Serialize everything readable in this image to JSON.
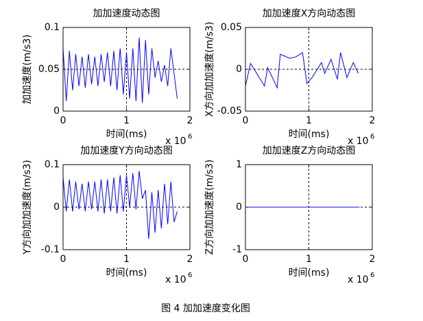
{
  "chart_data": [
    {
      "type": "line",
      "title": "加加速度动态图",
      "xlabel": "时间(ms)",
      "ylabel": "加加速度(m/s3)",
      "x_exponent": {
        "base": "x 10",
        "power": "6"
      },
      "xlim": [
        0,
        2
      ],
      "xticks": [
        0,
        1,
        2
      ],
      "ylim": [
        0,
        0.1
      ],
      "yticks": [
        0,
        0.05,
        0.1
      ],
      "reference_lines": {
        "x": 1,
        "y": 0.05
      },
      "series": [
        {
          "color": "#0000ff",
          "x": [
            0,
            0.05,
            0.1,
            0.15,
            0.2,
            0.25,
            0.3,
            0.35,
            0.4,
            0.45,
            0.5,
            0.55,
            0.6,
            0.65,
            0.7,
            0.75,
            0.8,
            0.85,
            0.9,
            0.95,
            1,
            1.05,
            1.1,
            1.15,
            1.2,
            1.25,
            1.3,
            1.35,
            1.4,
            1.45,
            1.5,
            1.55,
            1.6,
            1.65,
            1.7,
            1.75,
            1.8
          ],
          "values": [
            0.075,
            0.012,
            0.072,
            0.025,
            0.068,
            0.03,
            0.065,
            0.028,
            0.068,
            0.032,
            0.065,
            0.03,
            0.068,
            0.035,
            0.07,
            0.03,
            0.072,
            0.025,
            0.075,
            0.02,
            0.07,
            0.015,
            0.075,
            0.012,
            0.088,
            0.01,
            0.085,
            0.02,
            0.075,
            0.04,
            0.06,
            0.035,
            0.055,
            0.03,
            0.075,
            0.045,
            0.015
          ]
        }
      ]
    },
    {
      "type": "line",
      "title": "加加速度X方向动态图",
      "xlabel": "时间(ms)",
      "ylabel": "X方向加加速度(m/s3)",
      "x_exponent": {
        "base": "x 10",
        "power": "6"
      },
      "xlim": [
        0,
        2
      ],
      "xticks": [
        0,
        1,
        2
      ],
      "ylim": [
        -0.05,
        0.05
      ],
      "yticks": [
        -0.05,
        0,
        0.05
      ],
      "reference_lines": {
        "x": 1,
        "y": 0
      },
      "series": [
        {
          "color": "#0000ff",
          "x": [
            0,
            0.08,
            0.3,
            0.35,
            0.5,
            0.55,
            0.7,
            0.8,
            0.9,
            0.97,
            1.05,
            1.2,
            1.25,
            1.35,
            1.45,
            1.5,
            1.6,
            1.7,
            1.78
          ],
          "values": [
            -0.02,
            0.007,
            -0.02,
            0.002,
            -0.022,
            0.018,
            0.013,
            0.015,
            0.02,
            -0.017,
            -0.01,
            0.008,
            -0.005,
            0.012,
            -0.012,
            0.02,
            -0.01,
            0.008,
            -0.005
          ]
        }
      ]
    },
    {
      "type": "line",
      "title": "加加速度Y方向动态图",
      "xlabel": "时间(ms)",
      "ylabel": "Y方向加加速度(m/s3)",
      "x_exponent": {
        "base": "x 10",
        "power": "6"
      },
      "xlim": [
        0,
        2
      ],
      "xticks": [
        0,
        1,
        2
      ],
      "ylim": [
        -0.1,
        0.1
      ],
      "yticks": [
        -0.1,
        0,
        0.1
      ],
      "reference_lines": {
        "x": 1,
        "y": 0
      },
      "series": [
        {
          "color": "#0000ff",
          "x": [
            0,
            0.05,
            0.1,
            0.15,
            0.2,
            0.25,
            0.3,
            0.35,
            0.4,
            0.45,
            0.5,
            0.55,
            0.6,
            0.65,
            0.7,
            0.75,
            0.8,
            0.85,
            0.9,
            0.95,
            1,
            1.05,
            1.1,
            1.15,
            1.2,
            1.25,
            1.3,
            1.35,
            1.4,
            1.45,
            1.5,
            1.55,
            1.6,
            1.65,
            1.7,
            1.75,
            1.8
          ],
          "values": [
            0.07,
            -0.01,
            0.065,
            -0.01,
            0.06,
            -0.005,
            0.055,
            -0.01,
            0.06,
            -0.005,
            0.06,
            -0.01,
            0.065,
            -0.015,
            0.065,
            -0.01,
            0.07,
            -0.015,
            0.075,
            -0.01,
            0.075,
            0.0,
            0.08,
            -0.005,
            0.085,
            0.02,
            0.04,
            -0.075,
            0.035,
            -0.06,
            0.04,
            -0.05,
            0.055,
            -0.04,
            0.06,
            -0.035,
            -0.01
          ]
        }
      ]
    },
    {
      "type": "line",
      "title": "加加速度Z方向动态图",
      "xlabel": "时间(ms)",
      "ylabel": "Z方向加加速度(m/s3)",
      "x_exponent": {
        "base": "x 10",
        "power": "6"
      },
      "xlim": [
        0,
        2
      ],
      "xticks": [
        0,
        1,
        2
      ],
      "ylim": [
        -1,
        1
      ],
      "yticks": [
        -1,
        0,
        1
      ],
      "reference_lines": {
        "x": 1,
        "y": 0
      },
      "series": [
        {
          "color": "#0000ff",
          "x": [
            0,
            1.8
          ],
          "values": [
            0,
            0
          ]
        }
      ]
    }
  ],
  "caption": "图 4  加加速度变化图"
}
